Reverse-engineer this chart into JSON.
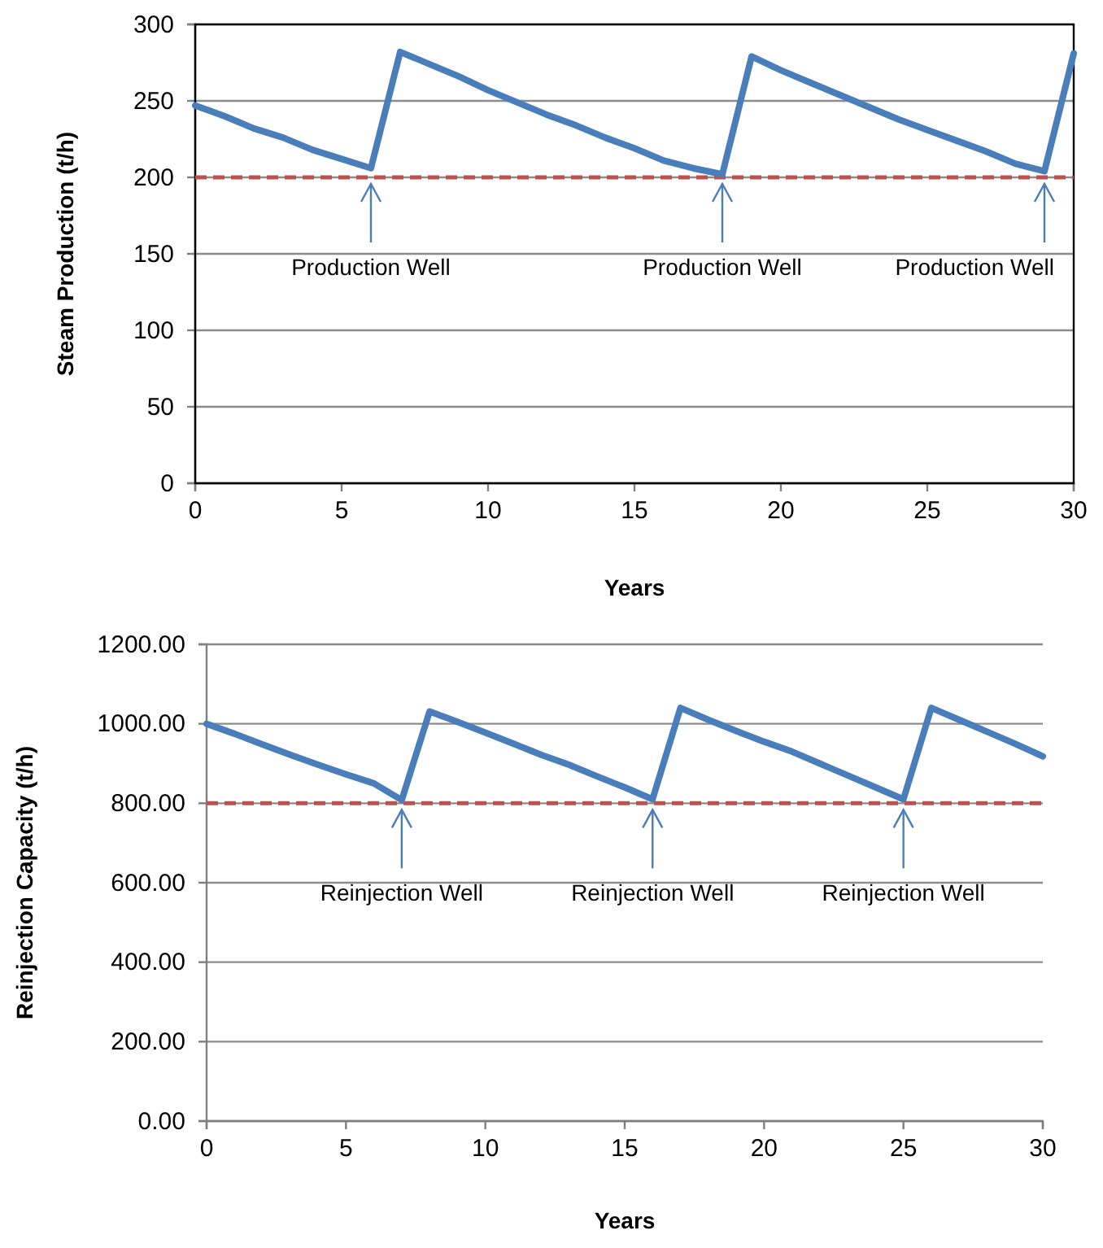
{
  "chart_data": [
    {
      "type": "line",
      "xlabel": "Years",
      "ylabel": "Steam Production  (t/h)",
      "x": [
        0,
        1,
        2,
        3,
        4,
        5,
        6,
        7,
        8,
        9,
        10,
        11,
        12,
        13,
        14,
        15,
        16,
        17,
        18,
        19,
        20,
        21,
        22,
        23,
        24,
        25,
        26,
        27,
        28,
        29,
        30
      ],
      "series": [
        {
          "color": "#4a7ebb",
          "values": [
            247,
            240,
            232,
            226,
            218,
            212,
            206,
            282,
            274,
            266,
            257,
            249,
            241,
            234,
            226,
            219,
            211,
            206,
            202,
            279,
            270,
            262,
            254,
            246,
            238,
            231,
            224,
            217,
            209,
            204,
            281
          ]
        }
      ],
      "xlim": [
        0,
        30
      ],
      "xticks": [
        0,
        5,
        10,
        15,
        20,
        25,
        30
      ],
      "ylim": [
        0,
        300
      ],
      "yticks": [
        0,
        50,
        100,
        150,
        200,
        250,
        300
      ],
      "grid": "y",
      "marker": "none",
      "line_style": "solid",
      "ref_lines": [
        {
          "axis": "y",
          "value": 200,
          "color": "#c0504d",
          "line_style": "dashed"
        }
      ],
      "annotations": [
        {
          "text": "Production Well",
          "x": 6,
          "y": 200
        },
        {
          "text": "Production Well",
          "x": 18,
          "y": 200
        },
        {
          "text": "Production Well",
          "x": 29,
          "y": 200
        }
      ]
    },
    {
      "type": "line",
      "xlabel": "Years",
      "ylabel": "Reinjection Capacity  (t/h)",
      "x": [
        0,
        1,
        2,
        3,
        4,
        5,
        6,
        7,
        8,
        9,
        10,
        11,
        12,
        13,
        14,
        15,
        16,
        17,
        18,
        19,
        20,
        21,
        22,
        23,
        24,
        25,
        26,
        27,
        28,
        29,
        30
      ],
      "series": [
        {
          "color": "#4a7ebb",
          "values": [
            1000,
            975,
            948,
            922,
            897,
            873,
            850,
            808,
            1031,
            1005,
            978,
            950,
            922,
            897,
            868,
            840,
            810,
            1040,
            1010,
            982,
            955,
            930,
            900,
            870,
            840,
            810,
            1040,
            1010,
            980,
            950,
            918
          ]
        }
      ],
      "xlim": [
        0,
        30
      ],
      "xticks": [
        0,
        5,
        10,
        15,
        20,
        25,
        30
      ],
      "ylim": [
        0,
        1200
      ],
      "yticks": [
        {
          "value": 0,
          "label": "0.00"
        },
        {
          "value": 200,
          "label": "200.00"
        },
        {
          "value": 400,
          "label": "400.00"
        },
        {
          "value": 600,
          "label": "600.00"
        },
        {
          "value": 800,
          "label": "800.00"
        },
        {
          "value": 1000,
          "label": "1000.00"
        },
        {
          "value": 1200,
          "label": "1200.00"
        }
      ],
      "grid": "y",
      "marker": "none",
      "line_style": "solid",
      "ref_lines": [
        {
          "axis": "y",
          "value": 800,
          "color": "#c0504d",
          "line_style": "dashed"
        }
      ],
      "annotations": [
        {
          "text": "Reinjection Well",
          "x": 7,
          "y": 800
        },
        {
          "text": "Reinjection Well",
          "x": 16,
          "y": 800
        },
        {
          "text": "Reinjection Well",
          "x": 25,
          "y": 800
        }
      ]
    }
  ]
}
